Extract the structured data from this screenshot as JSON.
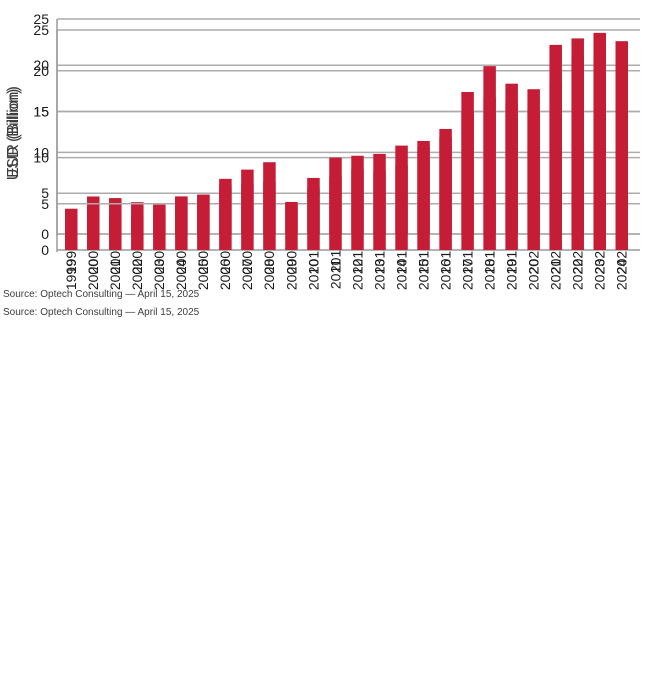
{
  "page": {
    "background": "#ffffff"
  },
  "styles": {
    "bar_color": "#c61d37",
    "gridline_color": "#acacac",
    "axis_color": "#9c9c9c",
    "tick_text_color": "#1c1c1c",
    "caption_text_color": "#3d3d3d"
  },
  "chart_data": [
    {
      "type": "bar",
      "ylabel": "EUR (Billion)",
      "categories": [
        "1999",
        "2000",
        "2001",
        "2002",
        "2003",
        "2004",
        "2005",
        "2006",
        "2007",
        "2008",
        "2009",
        "2010",
        "2011",
        "2012",
        "2013",
        "2014",
        "2015",
        "2016",
        "2017",
        "2018",
        "2019",
        "2020",
        "2021",
        "2022",
        "2023",
        "2024"
      ],
      "values": [
        3.1,
        4.6,
        4.4,
        3.9,
        3.6,
        4.6,
        4.8,
        6.0,
        6.2,
        6.4,
        3.7,
        5.7,
        7.0,
        7.9,
        7.7,
        8.4,
        10.6,
        11.8,
        15.1,
        16.7,
        16.1,
        15.2,
        18.6,
        21.7,
        21.9,
        20.8
      ],
      "ylim": [
        0,
        25
      ],
      "yticks": [
        0,
        5,
        10,
        15,
        20,
        25
      ],
      "grid": true,
      "bar_color": "#c61d37",
      "x_tick_rotation_degrees": 90,
      "source": "Source: Optech Consulting — April 15, 2025"
    },
    {
      "type": "bar",
      "ylabel": "USD (Billion)",
      "categories": [
        "1999",
        "2000",
        "2001",
        "2002",
        "2003",
        "2004",
        "2005",
        "2006",
        "2007",
        "2008",
        "2009",
        "2010",
        "2011",
        "2012",
        "2013",
        "2014",
        "2015",
        "2016",
        "2017",
        "2018",
        "2019",
        "2020",
        "2021",
        "2022",
        "2023",
        "2024"
      ],
      "values": [
        3.3,
        4.3,
        4.0,
        3.7,
        4.2,
        5.8,
        6.0,
        7.7,
        8.7,
        9.5,
        5.2,
        7.8,
        10.0,
        10.2,
        10.4,
        11.3,
        11.8,
        13.1,
        17.1,
        19.9,
        18.0,
        17.4,
        22.2,
        22.9,
        23.5,
        22.6
      ],
      "ylim": [
        0,
        25
      ],
      "yticks": [
        0,
        5,
        10,
        15,
        20,
        25
      ],
      "grid": true,
      "bar_color": "#c61d37",
      "x_tick_rotation_degrees": 90,
      "source": "Source: Optech Consulting — April 15, 2025"
    }
  ]
}
